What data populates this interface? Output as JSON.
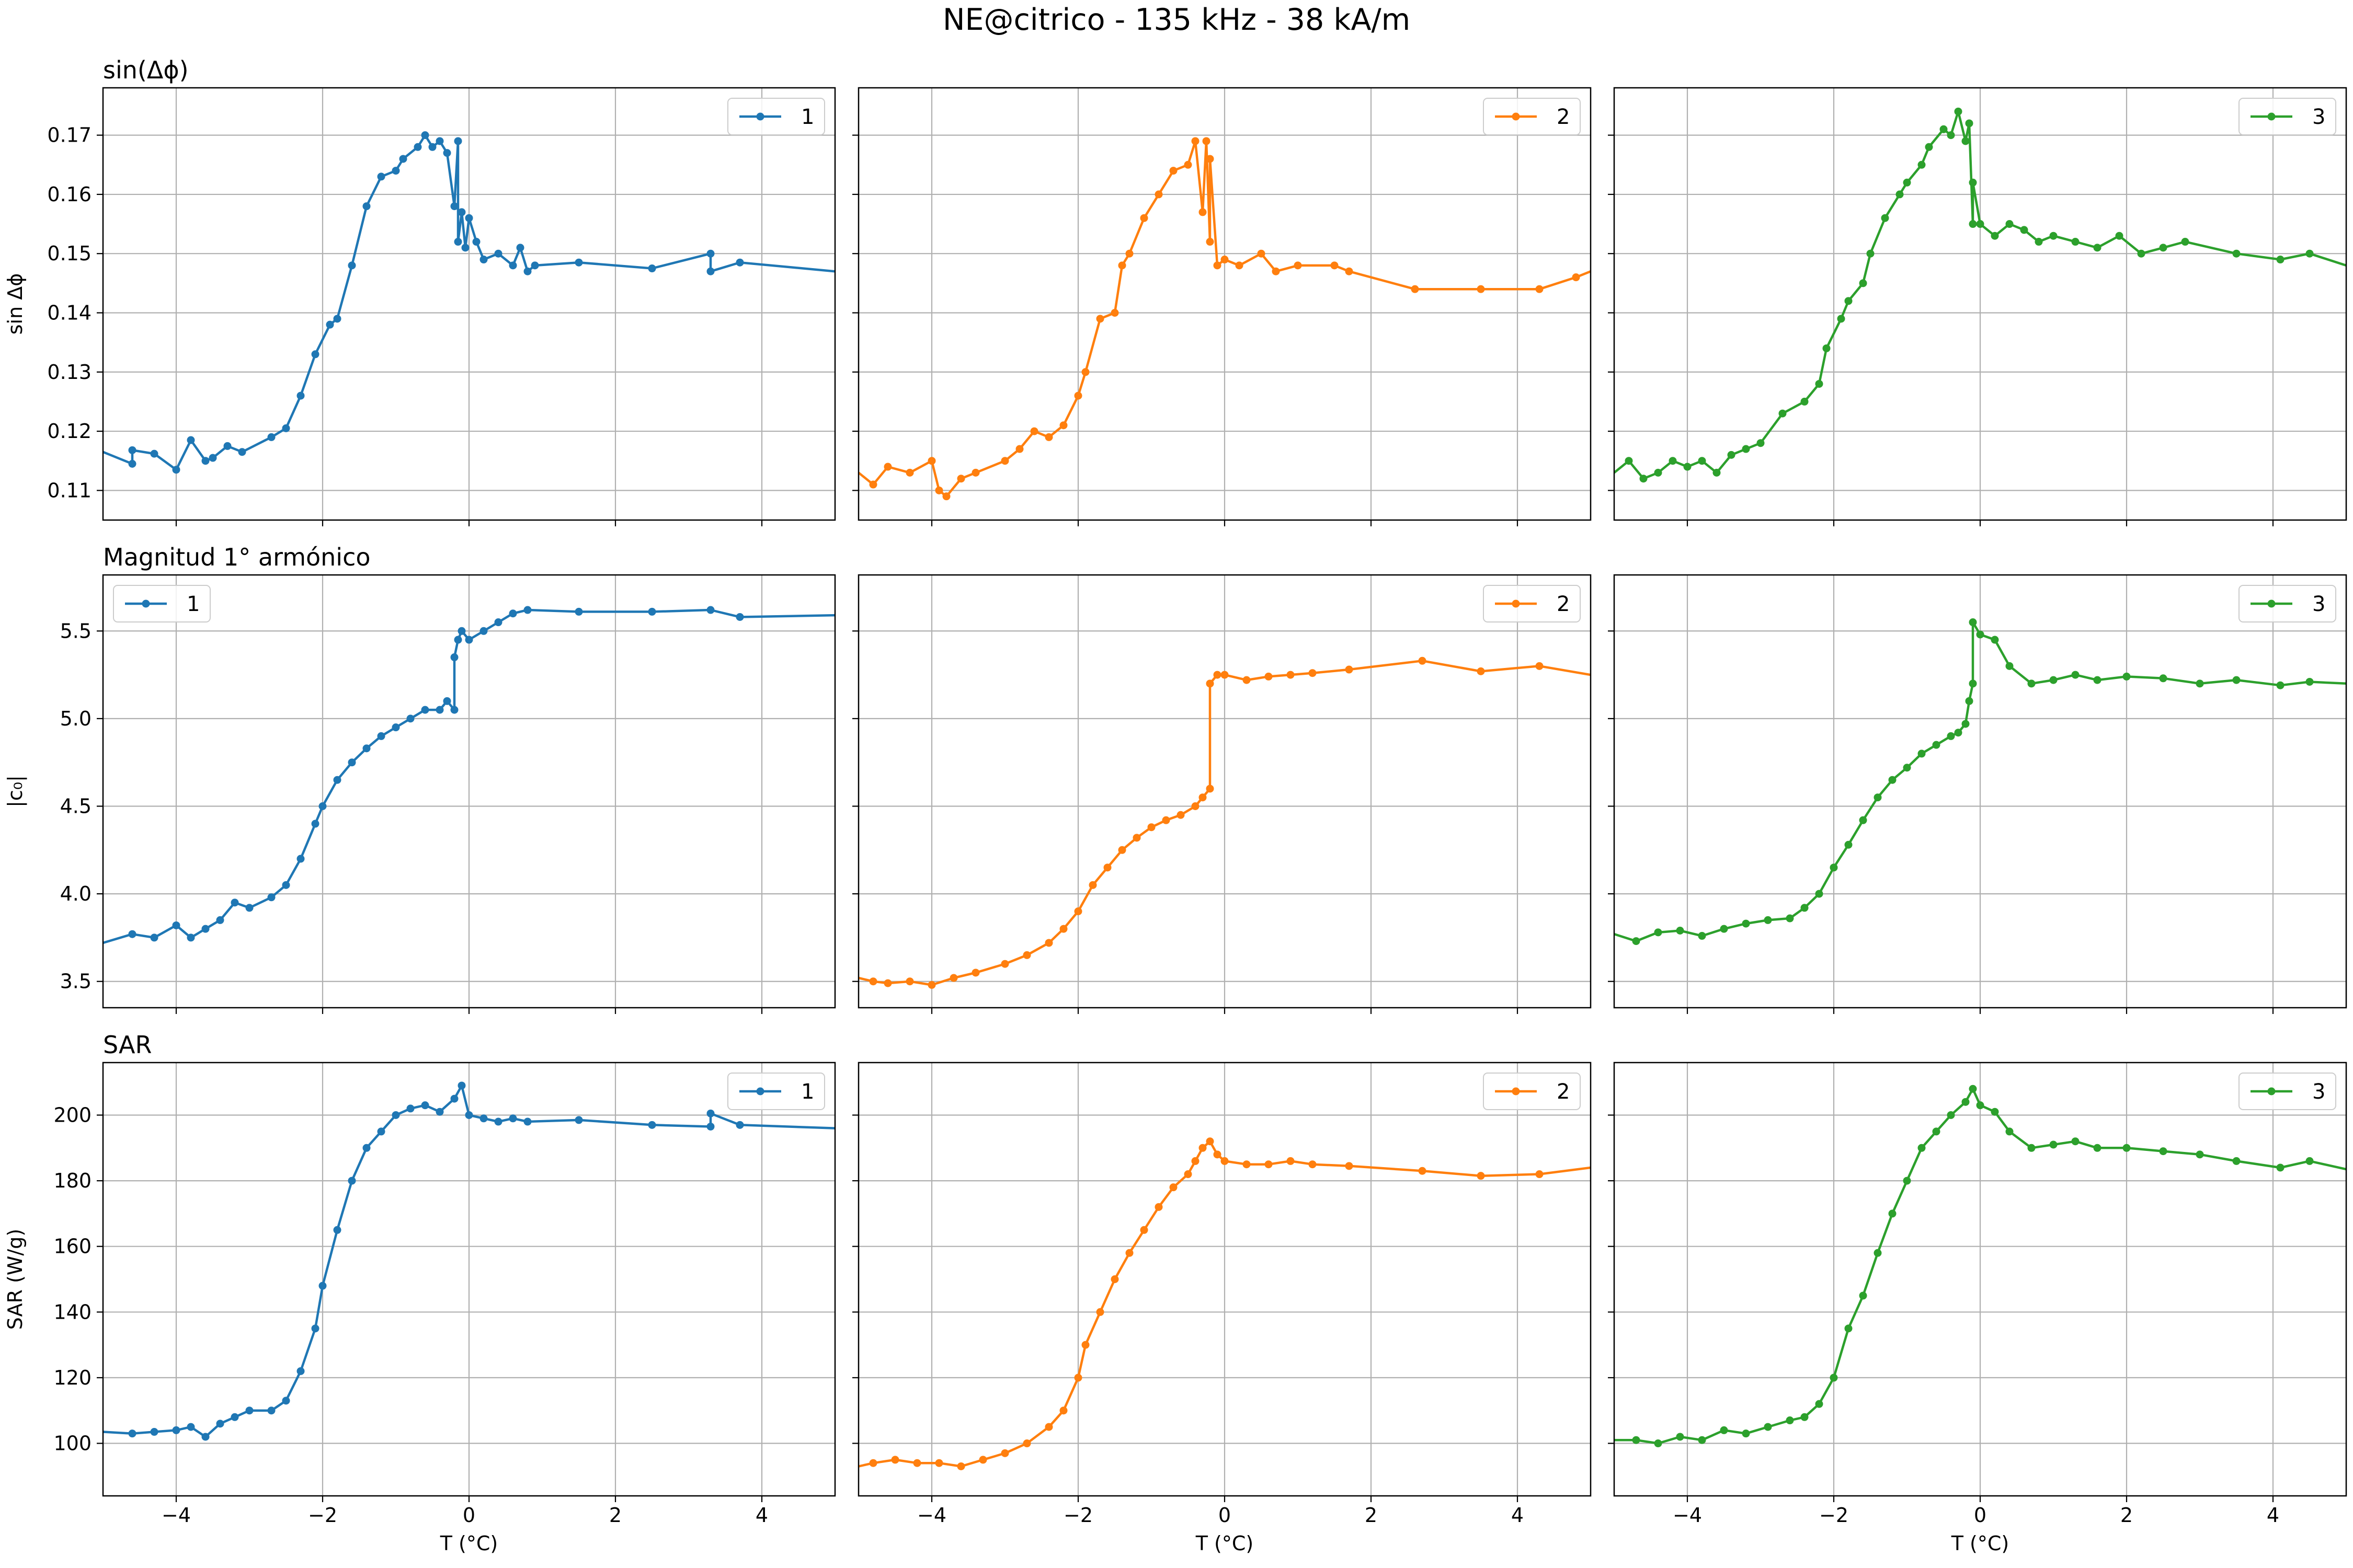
{
  "figure": {
    "title": "NE@citrico - 135 kHz - 38 kA/m",
    "xlabel": "T (°C)",
    "colors": [
      "#1f77b4",
      "#ff7f0e",
      "#2ca02c"
    ]
  },
  "chart_data": [
    {
      "type": "line",
      "row_title": "sin(Δϕ)",
      "ylabel": "sin Δϕ",
      "xlim": [
        -5,
        5
      ],
      "ylim": [
        0.105,
        0.178
      ],
      "yticks": [
        0.11,
        0.12,
        0.13,
        0.14,
        0.15,
        0.16,
        0.17
      ],
      "ytick_labels": [
        "0.11",
        "0.12",
        "0.13",
        "0.14",
        "0.15",
        "0.16",
        "0.17"
      ],
      "series": [
        {
          "name": "1",
          "x": [
            -5,
            -4.6,
            -4.6,
            -4.3,
            -4.0,
            -3.8,
            -3.6,
            -3.5,
            -3.3,
            -3.1,
            -2.7,
            -2.5,
            -2.3,
            -2.1,
            -1.9,
            -1.8,
            -1.6,
            -1.4,
            -1.2,
            -1.0,
            -0.9,
            -0.7,
            -0.6,
            -0.5,
            -0.4,
            -0.3,
            -0.2,
            -0.15,
            -0.15,
            -0.1,
            -0.05,
            0,
            0.1,
            0.2,
            0.4,
            0.6,
            0.7,
            0.8,
            0.9,
            1.5,
            2.5,
            3.3,
            3.3,
            3.7,
            5.0
          ],
          "y": [
            0.1165,
            0.1145,
            0.1168,
            0.1162,
            0.1135,
            0.1185,
            0.115,
            0.1155,
            0.1175,
            0.1165,
            0.119,
            0.1205,
            0.126,
            0.133,
            0.138,
            0.139,
            0.148,
            0.158,
            0.163,
            0.164,
            0.166,
            0.168,
            0.17,
            0.168,
            0.169,
            0.167,
            0.158,
            0.169,
            0.152,
            0.157,
            0.151,
            0.156,
            0.152,
            0.149,
            0.15,
            0.148,
            0.151,
            0.147,
            0.148,
            0.1485,
            0.1475,
            0.15,
            0.147,
            0.1485,
            0.147
          ]
        },
        {
          "name": "2",
          "x": [
            -5,
            -4.8,
            -4.6,
            -4.3,
            -4.0,
            -3.9,
            -3.8,
            -3.6,
            -3.4,
            -3.0,
            -2.8,
            -2.6,
            -2.4,
            -2.2,
            -2.0,
            -1.9,
            -1.7,
            -1.5,
            -1.4,
            -1.3,
            -1.1,
            -0.9,
            -0.7,
            -0.5,
            -0.4,
            -0.3,
            -0.25,
            -0.2,
            -0.2,
            -0.1,
            0,
            0.2,
            0.5,
            0.7,
            1.0,
            1.5,
            1.7,
            2.6,
            3.5,
            4.3,
            4.8,
            5.0
          ],
          "y": [
            0.113,
            0.111,
            0.114,
            0.113,
            0.115,
            0.11,
            0.109,
            0.112,
            0.113,
            0.115,
            0.117,
            0.12,
            0.119,
            0.121,
            0.126,
            0.13,
            0.139,
            0.14,
            0.148,
            0.15,
            0.156,
            0.16,
            0.164,
            0.165,
            0.169,
            0.157,
            0.169,
            0.152,
            0.166,
            0.148,
            0.149,
            0.148,
            0.15,
            0.147,
            0.148,
            0.148,
            0.147,
            0.144,
            0.144,
            0.144,
            0.146,
            0.147
          ]
        },
        {
          "name": "3",
          "x": [
            -5,
            -4.8,
            -4.6,
            -4.4,
            -4.2,
            -4.0,
            -3.8,
            -3.6,
            -3.4,
            -3.2,
            -3.0,
            -2.7,
            -2.4,
            -2.2,
            -2.1,
            -1.9,
            -1.8,
            -1.6,
            -1.5,
            -1.3,
            -1.1,
            -1.0,
            -0.8,
            -0.7,
            -0.5,
            -0.4,
            -0.3,
            -0.2,
            -0.15,
            -0.1,
            -0.1,
            0,
            0.2,
            0.4,
            0.6,
            0.8,
            1.0,
            1.3,
            1.6,
            1.9,
            2.2,
            2.5,
            2.8,
            3.5,
            4.1,
            4.5,
            5.0
          ],
          "y": [
            0.113,
            0.115,
            0.112,
            0.113,
            0.115,
            0.114,
            0.115,
            0.113,
            0.116,
            0.117,
            0.118,
            0.123,
            0.125,
            0.128,
            0.134,
            0.139,
            0.142,
            0.145,
            0.15,
            0.156,
            0.16,
            0.162,
            0.165,
            0.168,
            0.171,
            0.17,
            0.174,
            0.169,
            0.172,
            0.155,
            0.162,
            0.155,
            0.153,
            0.155,
            0.154,
            0.152,
            0.153,
            0.152,
            0.151,
            0.153,
            0.15,
            0.151,
            0.152,
            0.15,
            0.149,
            0.15,
            0.148
          ]
        }
      ]
    },
    {
      "type": "line",
      "row_title": "Magnitud 1° armónico",
      "ylabel": "|c₀|",
      "xlim": [
        -5,
        5
      ],
      "ylim": [
        3.35,
        5.82
      ],
      "yticks": [
        3.5,
        4.0,
        4.5,
        5.0,
        5.5
      ],
      "ytick_labels": [
        "3.5",
        "4.0",
        "4.5",
        "5.0",
        "5.5"
      ],
      "series": [
        {
          "name": "1",
          "x": [
            -5,
            -4.6,
            -4.3,
            -4.0,
            -3.8,
            -3.6,
            -3.4,
            -3.2,
            -3.0,
            -2.7,
            -2.5,
            -2.3,
            -2.1,
            -2.0,
            -1.8,
            -1.6,
            -1.4,
            -1.2,
            -1.0,
            -0.8,
            -0.6,
            -0.4,
            -0.3,
            -0.2,
            -0.2,
            -0.15,
            -0.1,
            0,
            0.2,
            0.4,
            0.6,
            0.8,
            1.5,
            2.5,
            3.3,
            3.7,
            5.0
          ],
          "y": [
            3.72,
            3.77,
            3.75,
            3.82,
            3.75,
            3.8,
            3.85,
            3.95,
            3.92,
            3.98,
            4.05,
            4.2,
            4.4,
            4.5,
            4.65,
            4.75,
            4.83,
            4.9,
            4.95,
            5.0,
            5.05,
            5.05,
            5.1,
            5.05,
            5.35,
            5.45,
            5.5,
            5.45,
            5.5,
            5.55,
            5.6,
            5.62,
            5.61,
            5.61,
            5.62,
            5.58,
            5.59
          ]
        },
        {
          "name": "2",
          "x": [
            -5,
            -4.8,
            -4.6,
            -4.3,
            -4.0,
            -3.7,
            -3.4,
            -3.0,
            -2.7,
            -2.4,
            -2.2,
            -2.0,
            -1.8,
            -1.6,
            -1.4,
            -1.2,
            -1.0,
            -0.8,
            -0.6,
            -0.4,
            -0.3,
            -0.2,
            -0.2,
            -0.1,
            0,
            0.3,
            0.6,
            0.9,
            1.2,
            1.7,
            2.7,
            3.5,
            4.3,
            5.0
          ],
          "y": [
            3.52,
            3.5,
            3.49,
            3.5,
            3.48,
            3.52,
            3.55,
            3.6,
            3.65,
            3.72,
            3.8,
            3.9,
            4.05,
            4.15,
            4.25,
            4.32,
            4.38,
            4.42,
            4.45,
            4.5,
            4.55,
            4.6,
            5.2,
            5.25,
            5.25,
            5.22,
            5.24,
            5.25,
            5.26,
            5.28,
            5.33,
            5.27,
            5.3,
            5.25
          ]
        },
        {
          "name": "3",
          "x": [
            -5,
            -4.7,
            -4.4,
            -4.1,
            -3.8,
            -3.5,
            -3.2,
            -2.9,
            -2.6,
            -2.4,
            -2.2,
            -2.0,
            -1.8,
            -1.6,
            -1.4,
            -1.2,
            -1.0,
            -0.8,
            -0.6,
            -0.4,
            -0.3,
            -0.2,
            -0.15,
            -0.1,
            -0.1,
            0,
            0.2,
            0.4,
            0.7,
            1.0,
            1.3,
            1.6,
            2.0,
            2.5,
            3.0,
            3.5,
            4.1,
            4.5,
            5.0
          ],
          "y": [
            3.77,
            3.73,
            3.78,
            3.79,
            3.76,
            3.8,
            3.83,
            3.85,
            3.86,
            3.92,
            4.0,
            4.15,
            4.28,
            4.42,
            4.55,
            4.65,
            4.72,
            4.8,
            4.85,
            4.9,
            4.92,
            4.97,
            5.1,
            5.2,
            5.55,
            5.48,
            5.45,
            5.3,
            5.2,
            5.22,
            5.25,
            5.22,
            5.24,
            5.23,
            5.2,
            5.22,
            5.19,
            5.21,
            5.2
          ]
        }
      ]
    },
    {
      "type": "line",
      "row_title": "SAR",
      "ylabel": "SAR (W/g)",
      "xlim": [
        -5,
        5
      ],
      "ylim": [
        84,
        216
      ],
      "yticks": [
        100,
        120,
        140,
        160,
        180,
        200
      ],
      "ytick_labels": [
        "100",
        "120",
        "140",
        "160",
        "180",
        "200"
      ],
      "series": [
        {
          "name": "1",
          "x": [
            -5,
            -4.6,
            -4.3,
            -4.0,
            -3.8,
            -3.6,
            -3.4,
            -3.2,
            -3.0,
            -2.7,
            -2.5,
            -2.3,
            -2.1,
            -2.0,
            -1.8,
            -1.6,
            -1.4,
            -1.2,
            -1.0,
            -0.8,
            -0.6,
            -0.4,
            -0.2,
            -0.1,
            0,
            0.2,
            0.4,
            0.6,
            0.8,
            1.5,
            2.5,
            3.3,
            3.3,
            3.7,
            5.0
          ],
          "y": [
            103.5,
            103,
            103.5,
            104,
            105,
            102,
            106,
            108,
            110,
            110,
            113,
            122,
            135,
            148,
            165,
            180,
            190,
            195,
            200,
            202,
            203,
            201,
            205,
            209,
            200,
            199,
            198,
            199,
            198,
            198.5,
            197,
            196.5,
            200.5,
            197,
            196
          ]
        },
        {
          "name": "2",
          "x": [
            -5,
            -4.8,
            -4.5,
            -4.2,
            -3.9,
            -3.6,
            -3.3,
            -3.0,
            -2.7,
            -2.4,
            -2.2,
            -2.0,
            -1.9,
            -1.7,
            -1.5,
            -1.3,
            -1.1,
            -0.9,
            -0.7,
            -0.5,
            -0.4,
            -0.3,
            -0.2,
            -0.1,
            0,
            0.3,
            0.6,
            0.9,
            1.2,
            1.7,
            2.7,
            3.5,
            4.3,
            5.0
          ],
          "y": [
            93,
            94,
            95,
            94,
            94,
            93,
            95,
            97,
            100,
            105,
            110,
            120,
            130,
            140,
            150,
            158,
            165,
            172,
            178,
            182,
            186,
            190,
            192,
            188,
            186,
            185,
            185,
            186,
            185,
            184.5,
            183,
            181.5,
            182,
            184
          ]
        },
        {
          "name": "3",
          "x": [
            -5,
            -4.7,
            -4.4,
            -4.1,
            -3.8,
            -3.5,
            -3.2,
            -2.9,
            -2.6,
            -2.4,
            -2.2,
            -2.0,
            -1.8,
            -1.6,
            -1.4,
            -1.2,
            -1.0,
            -0.8,
            -0.6,
            -0.4,
            -0.2,
            -0.1,
            0,
            0.2,
            0.4,
            0.7,
            1.0,
            1.3,
            1.6,
            2.0,
            2.5,
            3.0,
            3.5,
            4.1,
            4.5,
            5.0
          ],
          "y": [
            101,
            101,
            100,
            102,
            101,
            104,
            103,
            105,
            107,
            108,
            112,
            120,
            135,
            145,
            158,
            170,
            180,
            190,
            195,
            200,
            204,
            208,
            203,
            201,
            195,
            190,
            191,
            192,
            190,
            190,
            189,
            188,
            186,
            184,
            186,
            183.5
          ]
        }
      ]
    }
  ]
}
